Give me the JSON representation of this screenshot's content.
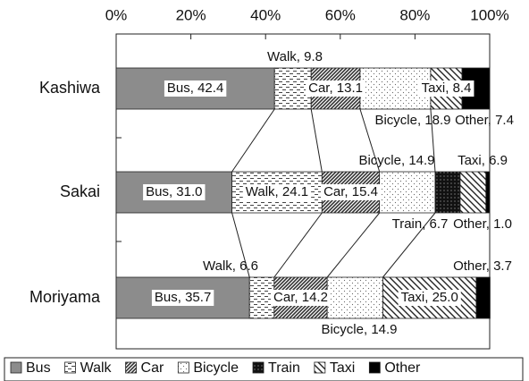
{
  "chart_data": {
    "type": "stacked-bar-horizontal",
    "categories": [
      "Kashiwa",
      "Sakai",
      "Moriyama"
    ],
    "xlim": [
      0,
      100
    ],
    "xticks": [
      {
        "value": 0,
        "label": "0%"
      },
      {
        "value": 20,
        "label": "20%"
      },
      {
        "value": 40,
        "label": "40%"
      },
      {
        "value": 60,
        "label": "60%"
      },
      {
        "value": 80,
        "label": "80%"
      },
      {
        "value": 100,
        "label": "100%"
      }
    ],
    "series": [
      {
        "name": "Bus",
        "color": "#8c8c8c",
        "values": [
          42.4,
          31.0,
          35.7
        ],
        "value_labels": [
          "Bus, 42.4",
          "Bus, 31.0",
          "Bus, 35.7"
        ]
      },
      {
        "name": "Walk",
        "color": "#444444",
        "values": [
          9.8,
          24.1,
          6.6
        ],
        "value_labels": [
          "Walk, 9.8",
          "Walk, 24.1",
          "Walk, 6.6"
        ]
      },
      {
        "name": "Car",
        "color": "#333333",
        "values": [
          13.1,
          15.4,
          14.2
        ],
        "value_labels": [
          "Car, 13.1",
          "Car, 15.4",
          "Car, 14.2"
        ]
      },
      {
        "name": "Bicycle",
        "color": "#666666",
        "values": [
          18.9,
          14.9,
          14.9
        ],
        "value_labels": [
          "Bicycle, 18.9",
          "Bicycle, 14.9",
          "Bicycle, 14.9"
        ]
      },
      {
        "name": "Train",
        "color": "#111111",
        "values": [
          0,
          6.7,
          0
        ],
        "value_labels": [
          null,
          "Train, 6.7",
          null
        ]
      },
      {
        "name": "Taxi",
        "color": "#222222",
        "values": [
          8.4,
          6.9,
          25.0
        ],
        "value_labels": [
          "Taxi, 8.4",
          "Taxi, 6.9",
          "Taxi, 25.0"
        ]
      },
      {
        "name": "Other",
        "color": "#000000",
        "values": [
          7.4,
          1.0,
          3.7
        ],
        "value_labels": [
          "Other, 7.4",
          "Other, 1.0",
          "Other, 3.7"
        ]
      }
    ]
  }
}
